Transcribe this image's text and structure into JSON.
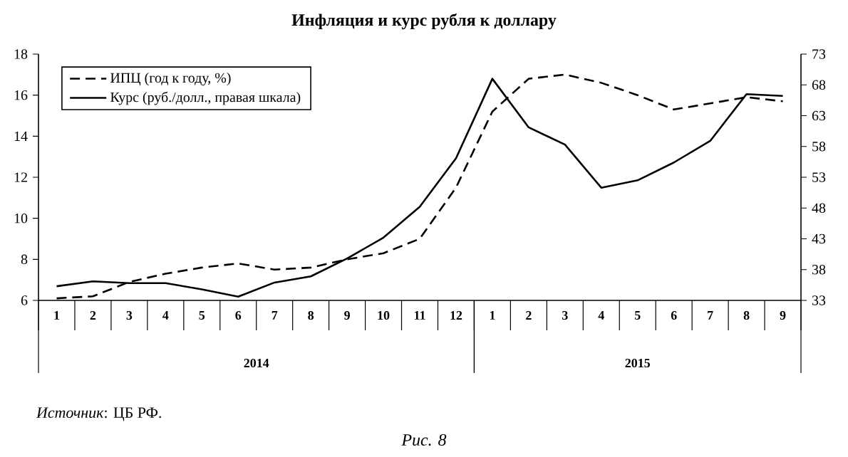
{
  "chart_data": {
    "type": "line",
    "title": "Инфляция и курс рубля к доллару",
    "categories": [
      "1",
      "2",
      "3",
      "4",
      "5",
      "6",
      "7",
      "8",
      "9",
      "10",
      "11",
      "12",
      "1",
      "2",
      "3",
      "4",
      "5",
      "6",
      "7",
      "8",
      "9"
    ],
    "series": [
      {
        "name": "ИПЦ  (год к году, %)",
        "color": "#000000",
        "line_style": "dashed",
        "values": [
          6.1,
          6.2,
          6.9,
          7.3,
          7.6,
          7.8,
          7.5,
          7.6,
          8.0,
          8.3,
          9.0,
          11.5,
          15.2,
          16.8,
          17.0,
          16.6,
          16.0,
          15.3,
          15.6,
          15.9,
          15.7
        ]
      },
      {
        "name": "Курс (руб./долл., правая шкала)",
        "color": "#000000",
        "line_style": "solid",
        "axis": "y2",
        "values": [
          35.3,
          36.1,
          35.8,
          35.8,
          34.8,
          33.6,
          35.9,
          36.9,
          39.8,
          43.2,
          48.2,
          56.1,
          69.0,
          61.1,
          58.3,
          51.3,
          52.5,
          55.4,
          58.9,
          66.5,
          66.2
        ]
      }
    ],
    "ylim": [
      6,
      18
    ],
    "yticks": [
      6,
      8,
      10,
      12,
      14,
      16,
      18
    ],
    "y2lim": [
      33,
      73
    ],
    "y2ticks": [
      33,
      38,
      43,
      48,
      53,
      58,
      63,
      68,
      73
    ],
    "legend": "top left",
    "marker": "none",
    "grid": false,
    "annotations": [
      "2014",
      "2015",
      "*Источник*: ЦБ РФ.",
      "Рис. 8"
    ]
  }
}
